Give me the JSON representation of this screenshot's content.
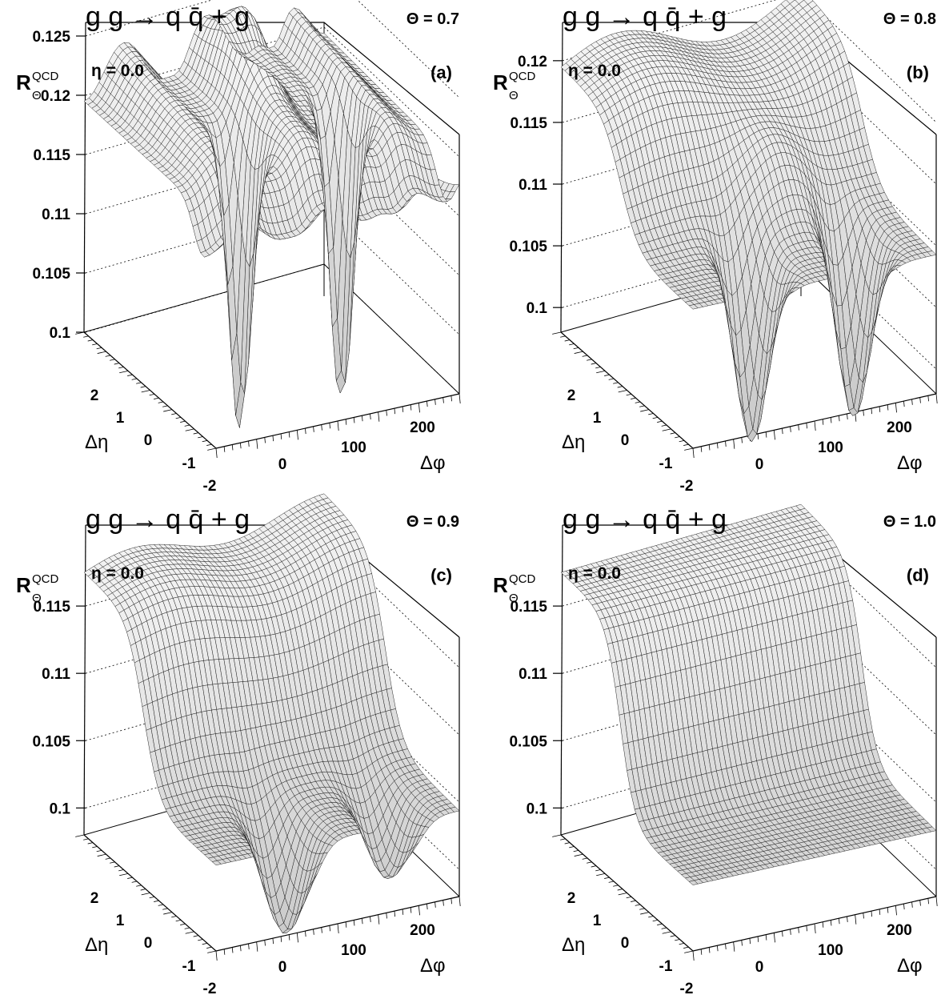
{
  "chart_data": [
    {
      "type": "surface",
      "panel_label": "(a)",
      "process": "g g → q q̄ + g",
      "theta_label": "Θ = 0.7",
      "theta": 0.7,
      "eta_label": "η = 0.0",
      "zlabel": "RΘQCD",
      "z_label_main": "R",
      "z_label_sup": "QCD",
      "z_label_sub": "Θ",
      "xlabel": "Δφ",
      "ylabel": "Δη",
      "zlim": [
        0.1,
        0.125
      ],
      "z_ticks": [
        "0.1",
        "0.105",
        "0.11",
        "0.115",
        "0.12",
        "0.125"
      ],
      "x_ticks": [
        "0",
        "100",
        "200"
      ],
      "y_ticks": [
        "2",
        "1",
        "0",
        "-1",
        "-2"
      ],
      "plateau": 0.1195,
      "min_value": 0.0945,
      "peak_value": 0.124
    },
    {
      "type": "surface",
      "panel_label": "(b)",
      "process": "g g → q q̄ + g",
      "theta_label": "Θ = 0.8",
      "theta": 0.8,
      "eta_label": "η = 0.0",
      "zlabel": "RΘQCD",
      "z_label_main": "R",
      "z_label_sup": "QCD",
      "z_label_sub": "Θ",
      "xlabel": "Δφ",
      "ylabel": "Δη",
      "zlim": [
        0.098,
        0.122
      ],
      "z_ticks": [
        "0.1",
        "0.105",
        "0.11",
        "0.115",
        "0.12"
      ],
      "x_ticks": [
        "0",
        "100",
        "200"
      ],
      "y_ticks": [
        "2",
        "1",
        "0",
        "-1",
        "-2"
      ],
      "plateau": 0.1195,
      "min_value": 0.0945,
      "peak_value": 0.1215
    },
    {
      "type": "surface",
      "panel_label": "(c)",
      "process": "g g → q q̄ + g",
      "theta_label": "Θ = 0.9",
      "theta": 0.9,
      "eta_label": "η = 0.0",
      "zlabel": "RΘQCD",
      "z_label_main": "R",
      "z_label_sup": "QCD",
      "z_label_sub": "Θ",
      "xlabel": "Δφ",
      "ylabel": "Δη",
      "zlim": [
        0.098,
        0.12
      ],
      "z_ticks": [
        "0.1",
        "0.105",
        "0.11",
        "0.115"
      ],
      "x_ticks": [
        "0",
        "100",
        "200"
      ],
      "y_ticks": [
        "2",
        "1",
        "0",
        "-1",
        "-2"
      ],
      "plateau": 0.1175,
      "min_value": 0.0965,
      "peak_value": 0.1182
    },
    {
      "type": "surface",
      "panel_label": "(d)",
      "process": "g g → q q̄ + g",
      "theta_label": "Θ = 1.0",
      "theta": 1.0,
      "eta_label": "η = 0.0",
      "zlabel": "RΘQCD",
      "z_label_main": "R",
      "z_label_sup": "QCD",
      "z_label_sub": "Θ",
      "xlabel": "Δφ",
      "ylabel": "Δη",
      "zlim": [
        0.098,
        0.12
      ],
      "z_ticks": [
        "0.1",
        "0.105",
        "0.11",
        "0.115"
      ],
      "x_ticks": [
        "0",
        "100",
        "200"
      ],
      "y_ticks": [
        "2",
        "1",
        "0",
        "-1",
        "-2"
      ],
      "plateau": 0.1175,
      "min_value": 0.098,
      "peak_value": 0.1175
    }
  ]
}
